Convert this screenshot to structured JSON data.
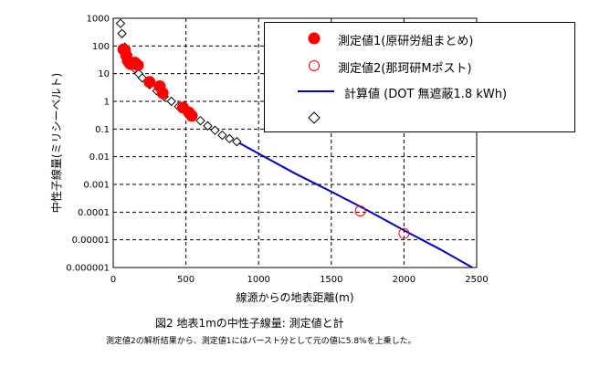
{
  "chart_data": {
    "type": "scatter",
    "title": "",
    "xlabel": "線源からの地表距離(m)",
    "ylabel": "中性子線量(ミリシーベルト)",
    "xlim": [
      0,
      2500
    ],
    "ylim": [
      1e-06,
      1000
    ],
    "yscale": "log",
    "grid": true,
    "x_ticks": [
      "0",
      "500",
      "1000",
      "1500",
      "2000",
      "2500"
    ],
    "y_ticks": [
      "0.000001",
      "0.00001",
      "0.0001",
      "0.001",
      "0.01",
      "0.1",
      "1",
      "10",
      "100",
      "1000"
    ],
    "legend_position": "top-right",
    "series": [
      {
        "name": "測定値1(原研労組まとめ)",
        "marker": "filled-circle",
        "color": "#ff0000",
        "x": [
          70,
          80,
          90,
          100,
          110,
          120,
          150,
          170,
          250,
          320,
          340,
          480,
          520,
          540
        ],
        "y": [
          75,
          70,
          45,
          30,
          25,
          22,
          25,
          20,
          5,
          3.5,
          2,
          0.6,
          0.4,
          0.3
        ]
      },
      {
        "name": "測定値2(那珂研Mポスト)",
        "marker": "open-circle",
        "color": "#ff0000",
        "x": [
          1700,
          2000
        ],
        "y": [
          0.00011,
          1.7e-05
        ]
      },
      {
        "name": "計算値 (DOT 無遮蔽1.8 kWh)",
        "marker": "line",
        "color": "#0000cc",
        "x": [
          850,
          1000,
          1250,
          1500,
          1750,
          2000,
          2250,
          2470
        ],
        "y": [
          0.035,
          0.013,
          0.0025,
          0.00055,
          0.000115,
          2.2e-05,
          4.5e-06,
          1e-06
        ]
      },
      {
        "name": "",
        "marker": "open-diamond",
        "color": "#000000",
        "x": [
          50,
          60,
          80,
          100,
          120,
          150,
          175,
          200,
          250,
          300,
          350,
          400,
          450,
          500,
          550,
          600,
          650,
          700,
          750,
          800,
          850
        ],
        "y": [
          650,
          280,
          90,
          50,
          30,
          15,
          10,
          7,
          4,
          2.4,
          1.5,
          1.0,
          0.65,
          0.45,
          0.3,
          0.2,
          0.13,
          0.09,
          0.06,
          0.045,
          0.035
        ]
      }
    ]
  },
  "caption": "図2 地表1mの中性子線量: 測定値と計",
  "note": "測定値2の解析結果から、測定値1にはバースト分として元の値に5.8%を上乗した。"
}
